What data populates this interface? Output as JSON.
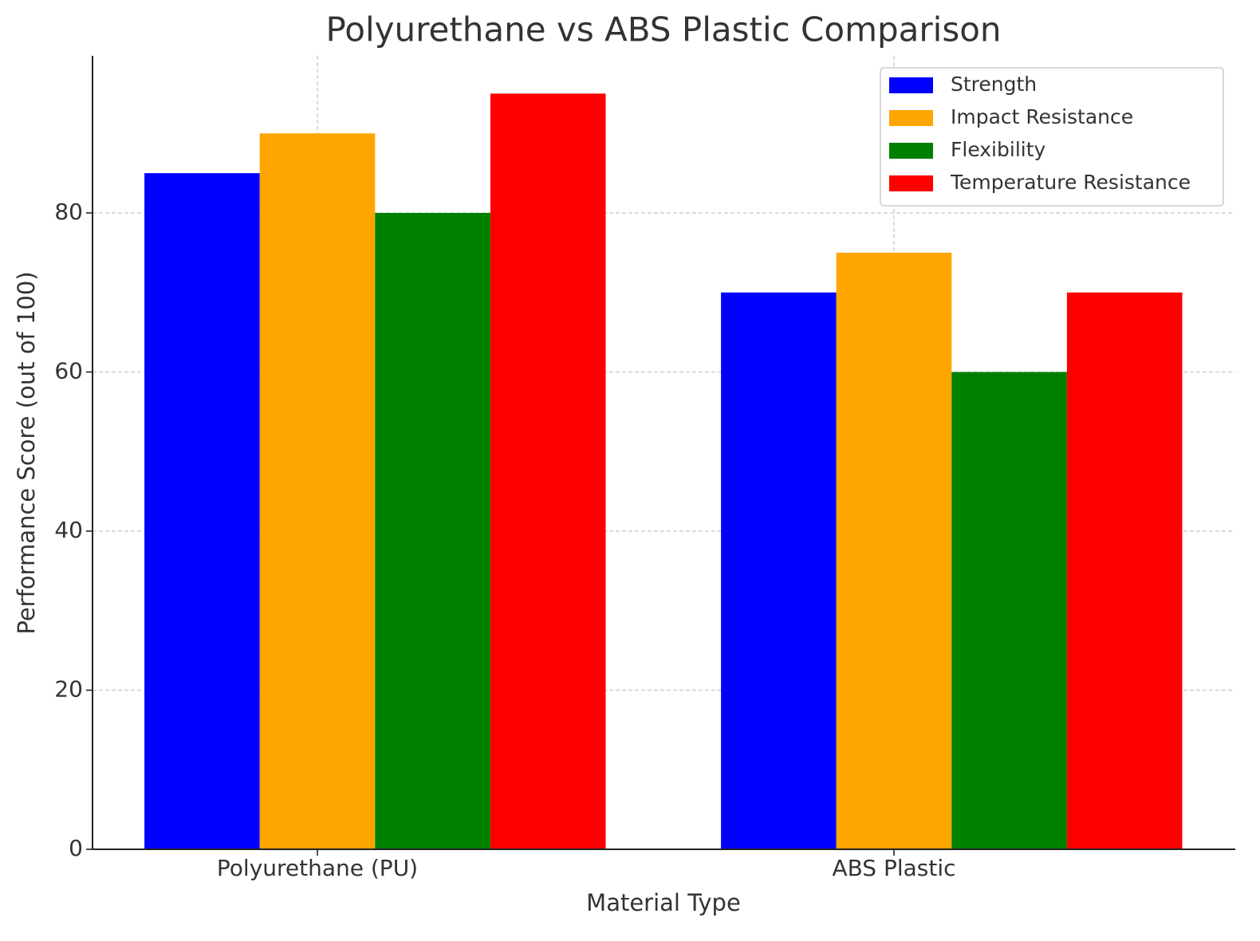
{
  "chart_data": {
    "type": "bar",
    "title": "Polyurethane vs ABS Plastic Comparison",
    "xlabel": "Material Type",
    "ylabel": "Performance Score (out of 100)",
    "categories": [
      "Polyurethane (PU)",
      "ABS Plastic"
    ],
    "series": [
      {
        "name": "Strength",
        "color": "#0000ff",
        "values": [
          85,
          70
        ]
      },
      {
        "name": "Impact Resistance",
        "color": "#ffa500",
        "values": [
          90,
          75
        ]
      },
      {
        "name": "Flexibility",
        "color": "#008000",
        "values": [
          80,
          60
        ]
      },
      {
        "name": "Temperature Resistance",
        "color": "#ff0000",
        "values": [
          95,
          70
        ]
      }
    ],
    "ylim": [
      0,
      99.75
    ],
    "yticks": [
      0,
      20,
      40,
      60,
      80
    ],
    "grid": true,
    "legend": "upper right"
  }
}
